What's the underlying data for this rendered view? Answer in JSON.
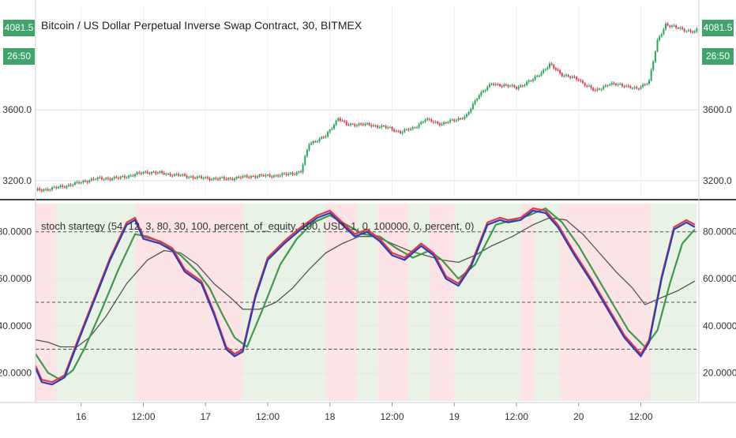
{
  "header": {
    "title": "Bitcoin / US Dollar Perpetual Inverse Swap Contract, 30, BITMEX",
    "price_badge": "4081.5",
    "timer_badge": "26:50"
  },
  "indicator": {
    "title": "stoch startegy (54, 12, 3, 80, 30, 100, percent_of_equity, 100, USD, 1, 0, 100000, 0, percent, 0)"
  },
  "colors": {
    "up": "#26a65b",
    "down": "#e0394b",
    "bg_green": "#e8f3e6",
    "bg_red": "#fbe3e6",
    "blue": "#2a3fb5",
    "red": "#e8344a",
    "green": "#3e9a4a",
    "gray": "#555555",
    "badge": "#3fa36a"
  },
  "chart_data": [
    {
      "type": "candlestick",
      "title": "Bitcoin / US Dollar Perpetual Inverse Swap Contract, 30, BITMEX",
      "ylim": [
        3115,
        4185
      ],
      "y_ticks": [
        "3200.0",
        "3600.0"
      ],
      "y_tick_values": [
        3200,
        3600
      ],
      "close_points": [
        [
          0,
          3145
        ],
        [
          8,
          3155
        ],
        [
          20,
          3185
        ],
        [
          28,
          3210
        ],
        [
          40,
          3215
        ],
        [
          54,
          3250
        ],
        [
          66,
          3235
        ],
        [
          80,
          3215
        ],
        [
          92,
          3210
        ],
        [
          104,
          3225
        ],
        [
          118,
          3230
        ],
        [
          128,
          3250
        ],
        [
          132,
          3410
        ],
        [
          140,
          3450
        ],
        [
          146,
          3555
        ],
        [
          150,
          3515
        ],
        [
          156,
          3520
        ],
        [
          168,
          3505
        ],
        [
          176,
          3475
        ],
        [
          182,
          3495
        ],
        [
          188,
          3545
        ],
        [
          196,
          3520
        ],
        [
          208,
          3565
        ],
        [
          214,
          3690
        ],
        [
          220,
          3745
        ],
        [
          226,
          3740
        ],
        [
          232,
          3725
        ],
        [
          240,
          3770
        ],
        [
          248,
          3855
        ],
        [
          254,
          3800
        ],
        [
          262,
          3770
        ],
        [
          270,
          3705
        ],
        [
          276,
          3745
        ],
        [
          284,
          3740
        ],
        [
          290,
          3715
        ],
        [
          296,
          3765
        ],
        [
          300,
          3985
        ],
        [
          304,
          4085
        ],
        [
          310,
          4060
        ],
        [
          318,
          4040
        ],
        [
          324,
          4090
        ],
        [
          328,
          4081.5
        ]
      ]
    },
    {
      "type": "line",
      "title": "stoch startegy (54, 12, 3, 80, 30, 100, percent_of_equity, 100, USD, 1, 0, 100000, 0, percent, 0)",
      "ylim": [
        8,
        92
      ],
      "y_ticks": [
        "20.0000",
        "40.0000",
        "60.0000",
        "80.0000"
      ],
      "y_tick_values": [
        20,
        40,
        60,
        80
      ],
      "hlines": [
        80,
        50,
        30
      ],
      "x_ticks": [
        "16",
        "12:00",
        "17",
        "12:00",
        "18",
        "12:00",
        "19",
        "12:00",
        "20",
        "12:00"
      ],
      "x_tick_index": [
        22,
        52,
        82,
        112,
        142,
        172,
        202,
        232,
        262,
        292
      ],
      "background_regions": [
        {
          "from": 0,
          "to": 10,
          "color": "red"
        },
        {
          "from": 10,
          "to": 48,
          "color": "green"
        },
        {
          "from": 48,
          "to": 100,
          "color": "red"
        },
        {
          "from": 100,
          "to": 140,
          "color": "green"
        },
        {
          "from": 140,
          "to": 155,
          "color": "red"
        },
        {
          "from": 155,
          "to": 165,
          "color": "green"
        },
        {
          "from": 165,
          "to": 180,
          "color": "red"
        },
        {
          "from": 180,
          "to": 190,
          "color": "green"
        },
        {
          "from": 190,
          "to": 202,
          "color": "red"
        },
        {
          "from": 202,
          "to": 234,
          "color": "green"
        },
        {
          "from": 234,
          "to": 241,
          "color": "red"
        },
        {
          "from": 241,
          "to": 253,
          "color": "green"
        },
        {
          "from": 253,
          "to": 297,
          "color": "red"
        },
        {
          "from": 297,
          "to": 319,
          "color": "green"
        }
      ],
      "series": [
        {
          "key": "blue",
          "points": [
            [
              0,
              22
            ],
            [
              3,
              16
            ],
            [
              8,
              15
            ],
            [
              14,
              18
            ],
            [
              20,
              32
            ],
            [
              28,
              50
            ],
            [
              36,
              68
            ],
            [
              44,
              83
            ],
            [
              48,
              85
            ],
            [
              52,
              77
            ],
            [
              60,
              75
            ],
            [
              66,
              72
            ],
            [
              72,
              63
            ],
            [
              80,
              58
            ],
            [
              86,
              45
            ],
            [
              92,
              30
            ],
            [
              96,
              27
            ],
            [
              100,
              29
            ],
            [
              106,
              52
            ],
            [
              112,
              68
            ],
            [
              120,
              75
            ],
            [
              128,
              81
            ],
            [
              136,
              86
            ],
            [
              142,
              88
            ],
            [
              148,
              83
            ],
            [
              154,
              78
            ],
            [
              160,
              80
            ],
            [
              166,
              76
            ],
            [
              172,
              70
            ],
            [
              178,
              68
            ],
            [
              186,
              74
            ],
            [
              192,
              70
            ],
            [
              198,
              60
            ],
            [
              204,
              57
            ],
            [
              210,
              65
            ],
            [
              218,
              83
            ],
            [
              224,
              85
            ],
            [
              228,
              84
            ],
            [
              234,
              85
            ],
            [
              240,
              89
            ],
            [
              246,
              88
            ],
            [
              252,
              82
            ],
            [
              260,
              70
            ],
            [
              268,
              59
            ],
            [
              276,
              47
            ],
            [
              284,
              35
            ],
            [
              292,
              27
            ],
            [
              296,
              33
            ],
            [
              302,
              60
            ],
            [
              308,
              81
            ],
            [
              314,
              84
            ],
            [
              318,
              82
            ]
          ]
        },
        {
          "key": "red",
          "points": [
            [
              0,
              23
            ],
            [
              3,
              17
            ],
            [
              8,
              16
            ],
            [
              14,
              19
            ],
            [
              20,
              33
            ],
            [
              28,
              51
            ],
            [
              36,
              69
            ],
            [
              44,
              84
            ],
            [
              48,
              86
            ],
            [
              52,
              78
            ],
            [
              60,
              76
            ],
            [
              66,
              73
            ],
            [
              72,
              64
            ],
            [
              80,
              59
            ],
            [
              86,
              46
            ],
            [
              92,
              31
            ],
            [
              96,
              28
            ],
            [
              100,
              30
            ],
            [
              106,
              53
            ],
            [
              112,
              69
            ],
            [
              120,
              76
            ],
            [
              128,
              82
            ],
            [
              136,
              87
            ],
            [
              142,
              89
            ],
            [
              148,
              84
            ],
            [
              154,
              79
            ],
            [
              160,
              81
            ],
            [
              166,
              77
            ],
            [
              172,
              71
            ],
            [
              178,
              69
            ],
            [
              186,
              75
            ],
            [
              192,
              71
            ],
            [
              198,
              61
            ],
            [
              204,
              58
            ],
            [
              210,
              66
            ],
            [
              218,
              84
            ],
            [
              224,
              86
            ],
            [
              228,
              85
            ],
            [
              234,
              86
            ],
            [
              240,
              90
            ],
            [
              246,
              89
            ],
            [
              252,
              83
            ],
            [
              260,
              71
            ],
            [
              268,
              60
            ],
            [
              276,
              48
            ],
            [
              284,
              36
            ],
            [
              292,
              28
            ],
            [
              296,
              34
            ],
            [
              302,
              61
            ],
            [
              308,
              82
            ],
            [
              314,
              85
            ],
            [
              318,
              83
            ]
          ]
        },
        {
          "key": "green",
          "points": [
            [
              0,
              28
            ],
            [
              6,
              20
            ],
            [
              12,
              17
            ],
            [
              18,
              21
            ],
            [
              24,
              31
            ],
            [
              32,
              47
            ],
            [
              40,
              64
            ],
            [
              48,
              79
            ],
            [
              54,
              78
            ],
            [
              62,
              75
            ],
            [
              70,
              70
            ],
            [
              78,
              63
            ],
            [
              84,
              56
            ],
            [
              90,
              45
            ],
            [
              96,
              35
            ],
            [
              102,
              31
            ],
            [
              110,
              48
            ],
            [
              118,
              66
            ],
            [
              126,
              77
            ],
            [
              134,
              84
            ],
            [
              142,
              87
            ],
            [
              150,
              83
            ],
            [
              158,
              79
            ],
            [
              166,
              78
            ],
            [
              174,
              73
            ],
            [
              182,
              69
            ],
            [
              190,
              72
            ],
            [
              196,
              68
            ],
            [
              204,
              60
            ],
            [
              212,
              66
            ],
            [
              222,
              83
            ],
            [
              230,
              85
            ],
            [
              238,
              87
            ],
            [
              246,
              90
            ],
            [
              254,
              84
            ],
            [
              262,
              74
            ],
            [
              270,
              62
            ],
            [
              278,
              50
            ],
            [
              286,
              38
            ],
            [
              294,
              31
            ],
            [
              300,
              38
            ],
            [
              306,
              58
            ],
            [
              312,
              75
            ],
            [
              318,
              81
            ]
          ]
        },
        {
          "key": "gray",
          "points": [
            [
              0,
              34
            ],
            [
              6,
              33
            ],
            [
              12,
              31
            ],
            [
              20,
              31
            ],
            [
              26,
              35
            ],
            [
              34,
              44
            ],
            [
              44,
              58
            ],
            [
              54,
              68
            ],
            [
              62,
              72
            ],
            [
              70,
              71
            ],
            [
              78,
              66
            ],
            [
              86,
              58
            ],
            [
              94,
              52
            ],
            [
              100,
              47
            ],
            [
              108,
              47
            ],
            [
              116,
              50
            ],
            [
              124,
              56
            ],
            [
              132,
              64
            ],
            [
              140,
              71
            ],
            [
              148,
              75
            ],
            [
              156,
              78
            ],
            [
              164,
              78
            ],
            [
              172,
              75
            ],
            [
              180,
              72
            ],
            [
              188,
              70
            ],
            [
              196,
              68
            ],
            [
              204,
              67
            ],
            [
              212,
              70
            ],
            [
              220,
              74
            ],
            [
              230,
              78
            ],
            [
              240,
              83
            ],
            [
              248,
              86
            ],
            [
              256,
              85
            ],
            [
              264,
              79
            ],
            [
              272,
              71
            ],
            [
              280,
              63
            ],
            [
              288,
              56
            ],
            [
              294,
              49
            ],
            [
              302,
              52
            ],
            [
              310,
              55
            ],
            [
              318,
              59
            ]
          ]
        }
      ]
    }
  ]
}
